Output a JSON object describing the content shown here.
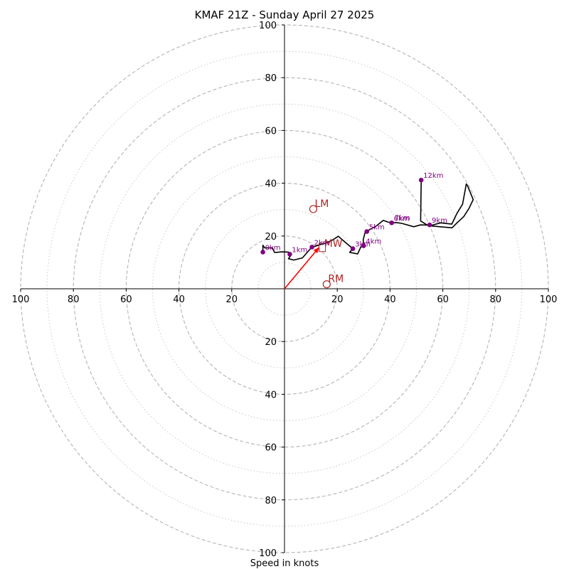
{
  "chart_data": {
    "type": "line",
    "title": "KMAF 21Z - Sunday April 27 2025",
    "xlabel": "Speed in knots",
    "ylabel": "",
    "xlim": [
      -100,
      100
    ],
    "ylim": [
      -100,
      100
    ],
    "rings_major": [
      20,
      40,
      60,
      80,
      100
    ],
    "rings_minor": [
      10,
      30,
      50,
      70,
      90
    ],
    "x_tick_labels": [
      "100",
      "80",
      "60",
      "40",
      "20",
      "20",
      "40",
      "60",
      "80",
      "100"
    ],
    "x_tick_values": [
      -100,
      -80,
      -60,
      -40,
      -20,
      20,
      40,
      60,
      80,
      100
    ],
    "y_tick_labels": [
      "100",
      "80",
      "60",
      "40",
      "20",
      "20",
      "40",
      "60",
      "80",
      "100"
    ],
    "y_tick_values": [
      100,
      80,
      60,
      40,
      20,
      -20,
      -40,
      -60,
      -80,
      -100
    ],
    "hodograph": {
      "color": "#000000",
      "x": [
        -8.2,
        -8.2,
        -7.5,
        -4.6,
        -3.8,
        -3,
        -1,
        1.5,
        2.5,
        1.5,
        3.5,
        6.8,
        10.2,
        13.5,
        16.2,
        18.2,
        20.4,
        22.8,
        25.9,
        24.7,
        27.7,
        28.9,
        30.1,
        29.8,
        30.6,
        31.2,
        34.8,
        37.4,
        37.8,
        39.1,
        40.6,
        42.3,
        44.4,
        49,
        51.5,
        55.9,
        59.1,
        63.4,
        65.3,
        67.5,
        68.9,
        69.3,
        71.5,
        69.9,
        67.9,
        65.3,
        63.5,
        54.5,
        51.6,
        51.8
      ],
      "y": [
        14,
        16.5,
        15.5,
        15.5,
        13.8,
        13.8,
        14,
        13.9,
        12.8,
        11.4,
        10.9,
        11.7,
        15.6,
        16.7,
        17.5,
        18.5,
        19.9,
        17.8,
        15.2,
        13.8,
        13.2,
        15.8,
        16.2,
        18.5,
        21.6,
        21.8,
        23.8,
        25.9,
        25.8,
        25.3,
        25,
        25.1,
        24.8,
        23.5,
        24.2,
        24.1,
        25,
        24.5,
        28.5,
        32.1,
        39.7,
        39.2,
        33.8,
        30.4,
        27.3,
        24.9,
        23.1,
        23.9,
        25.7,
        41.2
      ]
    },
    "height_markers": {
      "color": "#800080",
      "labels": [
        "0km",
        "1km",
        "2km",
        "3km",
        "4km",
        "5km",
        "6km",
        "9km",
        "12km"
      ],
      "x": [
        -8.2,
        2.0,
        10.4,
        25.9,
        30.0,
        31.2,
        40.6,
        55.0,
        51.8
      ],
      "y": [
        13.9,
        13.1,
        15.8,
        15.2,
        16.3,
        21.7,
        25.0,
        24.2,
        41.2
      ]
    },
    "label_overlap": {
      "labels": [
        "7km"
      ],
      "x": [
        40.9
      ],
      "y": [
        25.2
      ]
    },
    "mean_wind": {
      "label": "MW",
      "x": 13.1,
      "y": 15.7,
      "color": "#ff0000",
      "text_color": "#b22222"
    },
    "storm_motions": [
      {
        "label": "LM",
        "x": 10.9,
        "y": 30.2,
        "color": "#b22222"
      },
      {
        "label": "RM",
        "x": 16.0,
        "y": 1.7,
        "color": "#b22222"
      }
    ]
  }
}
